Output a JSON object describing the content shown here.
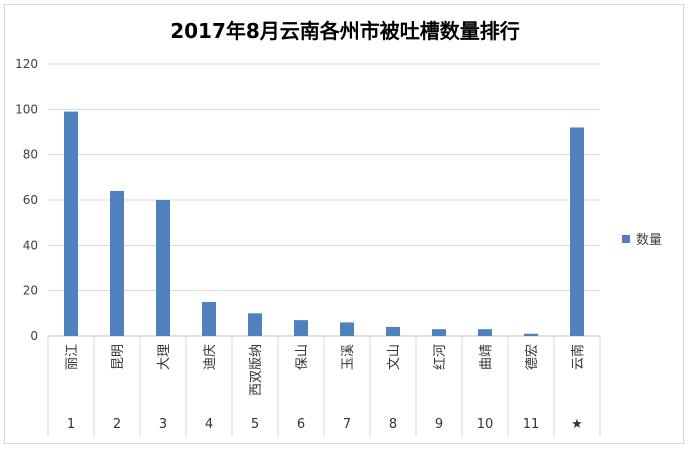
{
  "chart_data": {
    "type": "bar",
    "title": "2017年8月云南各州市被吐槽数量排行",
    "categories": [
      "丽江",
      "昆明",
      "大理",
      "迪庆",
      "西双版纳",
      "保山",
      "玉溪",
      "文山",
      "红河",
      "曲靖",
      "德宏",
      "云南"
    ],
    "ranks": [
      "1",
      "2",
      "3",
      "4",
      "5",
      "6",
      "7",
      "8",
      "9",
      "10",
      "11",
      "★"
    ],
    "series": [
      {
        "name": "数量",
        "values": [
          99,
          64,
          60,
          15,
          10,
          7,
          6,
          4,
          3,
          3,
          1,
          92
        ],
        "color": "#4f81bd"
      }
    ],
    "ylim": [
      0,
      120
    ],
    "yticks": [
      0,
      20,
      40,
      60,
      80,
      100,
      120
    ],
    "grid": true,
    "legend": "right"
  }
}
